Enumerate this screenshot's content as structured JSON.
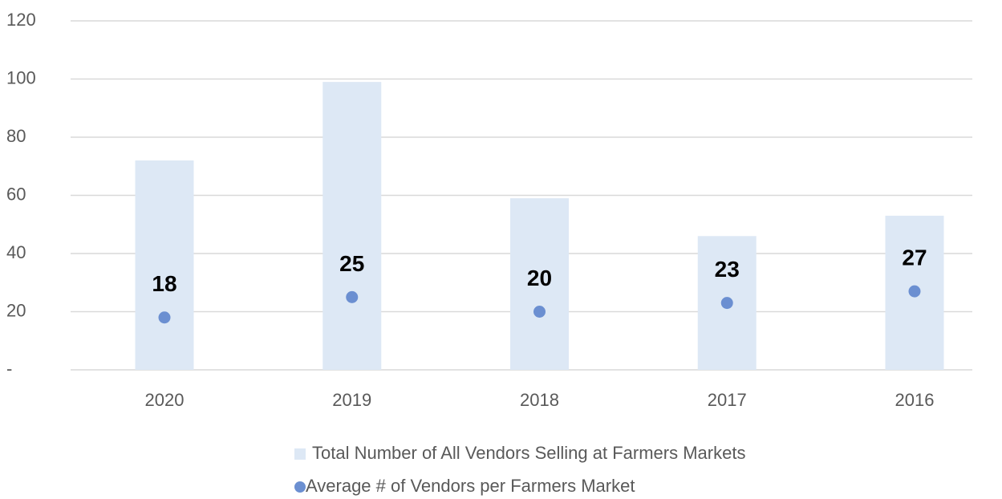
{
  "chart_data": {
    "type": "bar",
    "categories": [
      "2020",
      "2019",
      "2018",
      "2017",
      "2016"
    ],
    "series": [
      {
        "name": "Total Number of All Vendors Selling at Farmers Markets",
        "color": "#dde8f5",
        "values": [
          72,
          99,
          59,
          46,
          53
        ]
      },
      {
        "name": "Average # of Vendors per Farmers Market",
        "type": "scatter",
        "color": "#6b8fd1",
        "values": [
          18,
          25,
          20,
          23,
          27
        ],
        "data_labels": true
      }
    ],
    "ylim": [
      0,
      120
    ],
    "yticks": [
      {
        "value": 0,
        "label": "-"
      },
      20,
      40,
      60,
      80,
      100,
      120
    ],
    "grid": true,
    "legend": "bottom"
  }
}
